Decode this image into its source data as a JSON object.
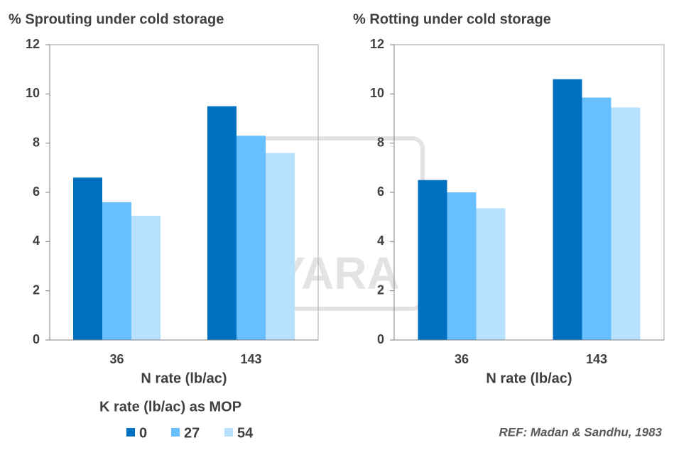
{
  "chart_data": [
    {
      "type": "bar",
      "title": "% Sprouting under cold storage",
      "xlabel": "N rate (lb/ac)",
      "categories": [
        "36",
        "143"
      ],
      "series": [
        {
          "name": "0",
          "color": "#0070c0",
          "values": [
            6.6,
            9.5
          ]
        },
        {
          "name": "27",
          "color": "#66bfff",
          "values": [
            5.6,
            8.3
          ]
        },
        {
          "name": "54",
          "color": "#b8e1ff",
          "values": [
            5.05,
            7.6
          ]
        }
      ],
      "ylim": [
        0,
        12
      ],
      "yticks": [
        0,
        2,
        4,
        6,
        8,
        10,
        12
      ],
      "legend_title": "K rate (lb/ac) as MOP"
    },
    {
      "type": "bar",
      "title": "% Rotting under cold storage",
      "xlabel": "N rate (lb/ac)",
      "categories": [
        "36",
        "143"
      ],
      "series": [
        {
          "name": "0",
          "color": "#0070c0",
          "values": [
            6.5,
            10.6
          ]
        },
        {
          "name": "27",
          "color": "#66bfff",
          "values": [
            6.0,
            9.85
          ]
        },
        {
          "name": "54",
          "color": "#b8e1ff",
          "values": [
            5.35,
            9.45
          ]
        }
      ],
      "ylim": [
        0,
        12
      ],
      "yticks": [
        0,
        2,
        4,
        6,
        8,
        10,
        12
      ]
    }
  ],
  "watermark": "YARA",
  "reference": "REF: Madan & Sandhu, 1983"
}
